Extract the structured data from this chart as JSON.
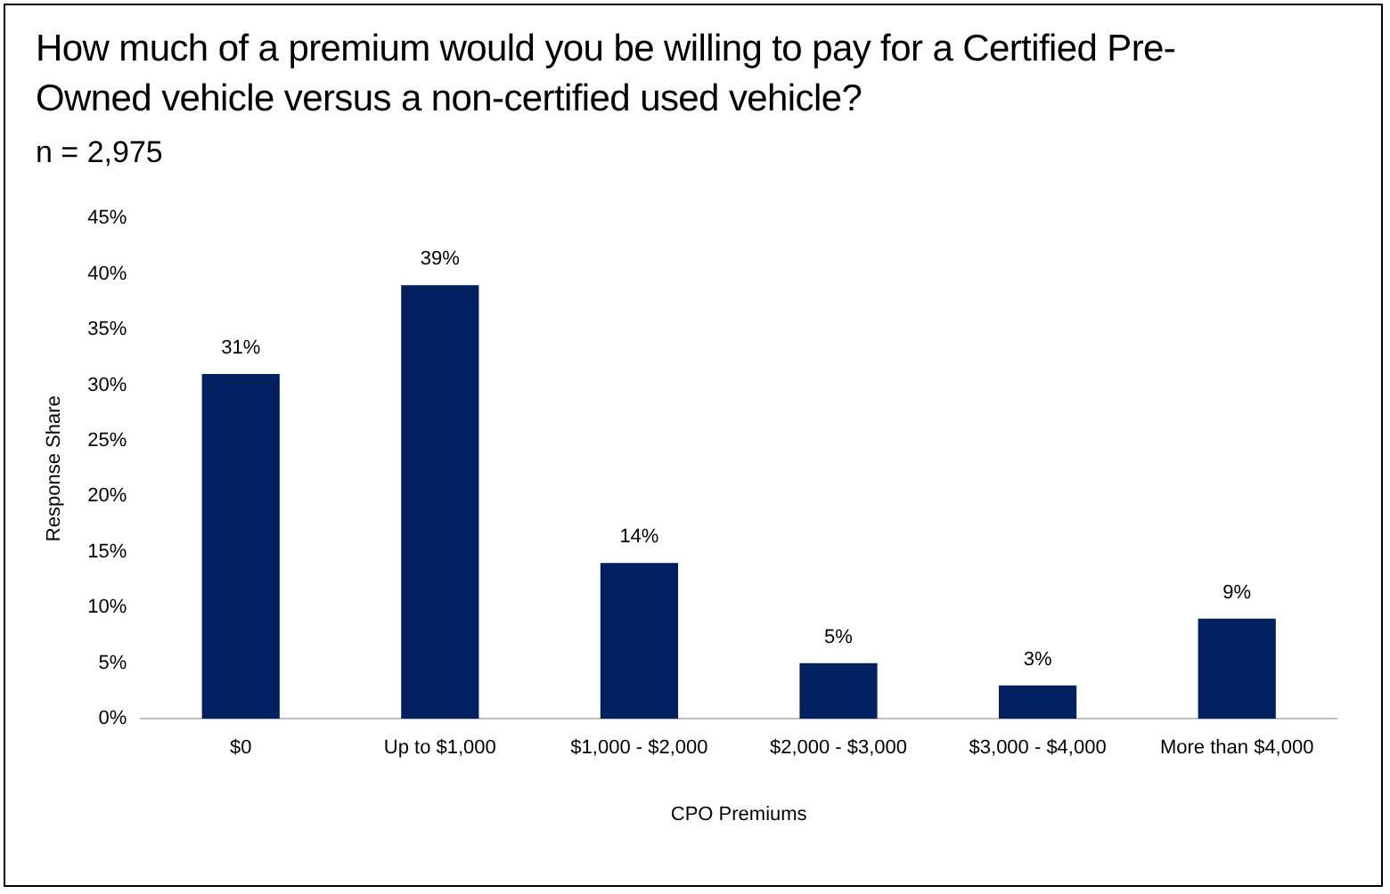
{
  "chart_data": {
    "type": "bar",
    "title": "How much of a premium would you be willing to pay for a Certified Pre-Owned vehicle versus a non-certified used vehicle?",
    "subtitle": "n = 2,975",
    "xlabel": "CPO Premiums",
    "ylabel": "Response Share",
    "categories": [
      "$0",
      "Up to $1,000",
      "$1,000 - $2,000",
      "$2,000 - $3,000",
      "$3,000 - $4,000",
      "More than $4,000"
    ],
    "values": [
      31,
      39,
      14,
      5,
      3,
      9
    ],
    "color": "#002060",
    "value_labels": [
      "31%",
      "39%",
      "14%",
      "5%",
      "3%",
      "9%"
    ],
    "ylim": [
      0,
      45
    ],
    "yticks": [
      {
        "value": 0,
        "label": "0%"
      },
      {
        "value": 5,
        "label": "5%"
      },
      {
        "value": 10,
        "label": "10%"
      },
      {
        "value": 15,
        "label": "15%"
      },
      {
        "value": 20,
        "label": "20%"
      },
      {
        "value": 25,
        "label": "25%"
      },
      {
        "value": 30,
        "label": "30%"
      },
      {
        "value": 35,
        "label": "35%"
      },
      {
        "value": 40,
        "label": "40%"
      },
      {
        "value": 45,
        "label": "45%"
      }
    ],
    "grid": false,
    "legend": false
  }
}
